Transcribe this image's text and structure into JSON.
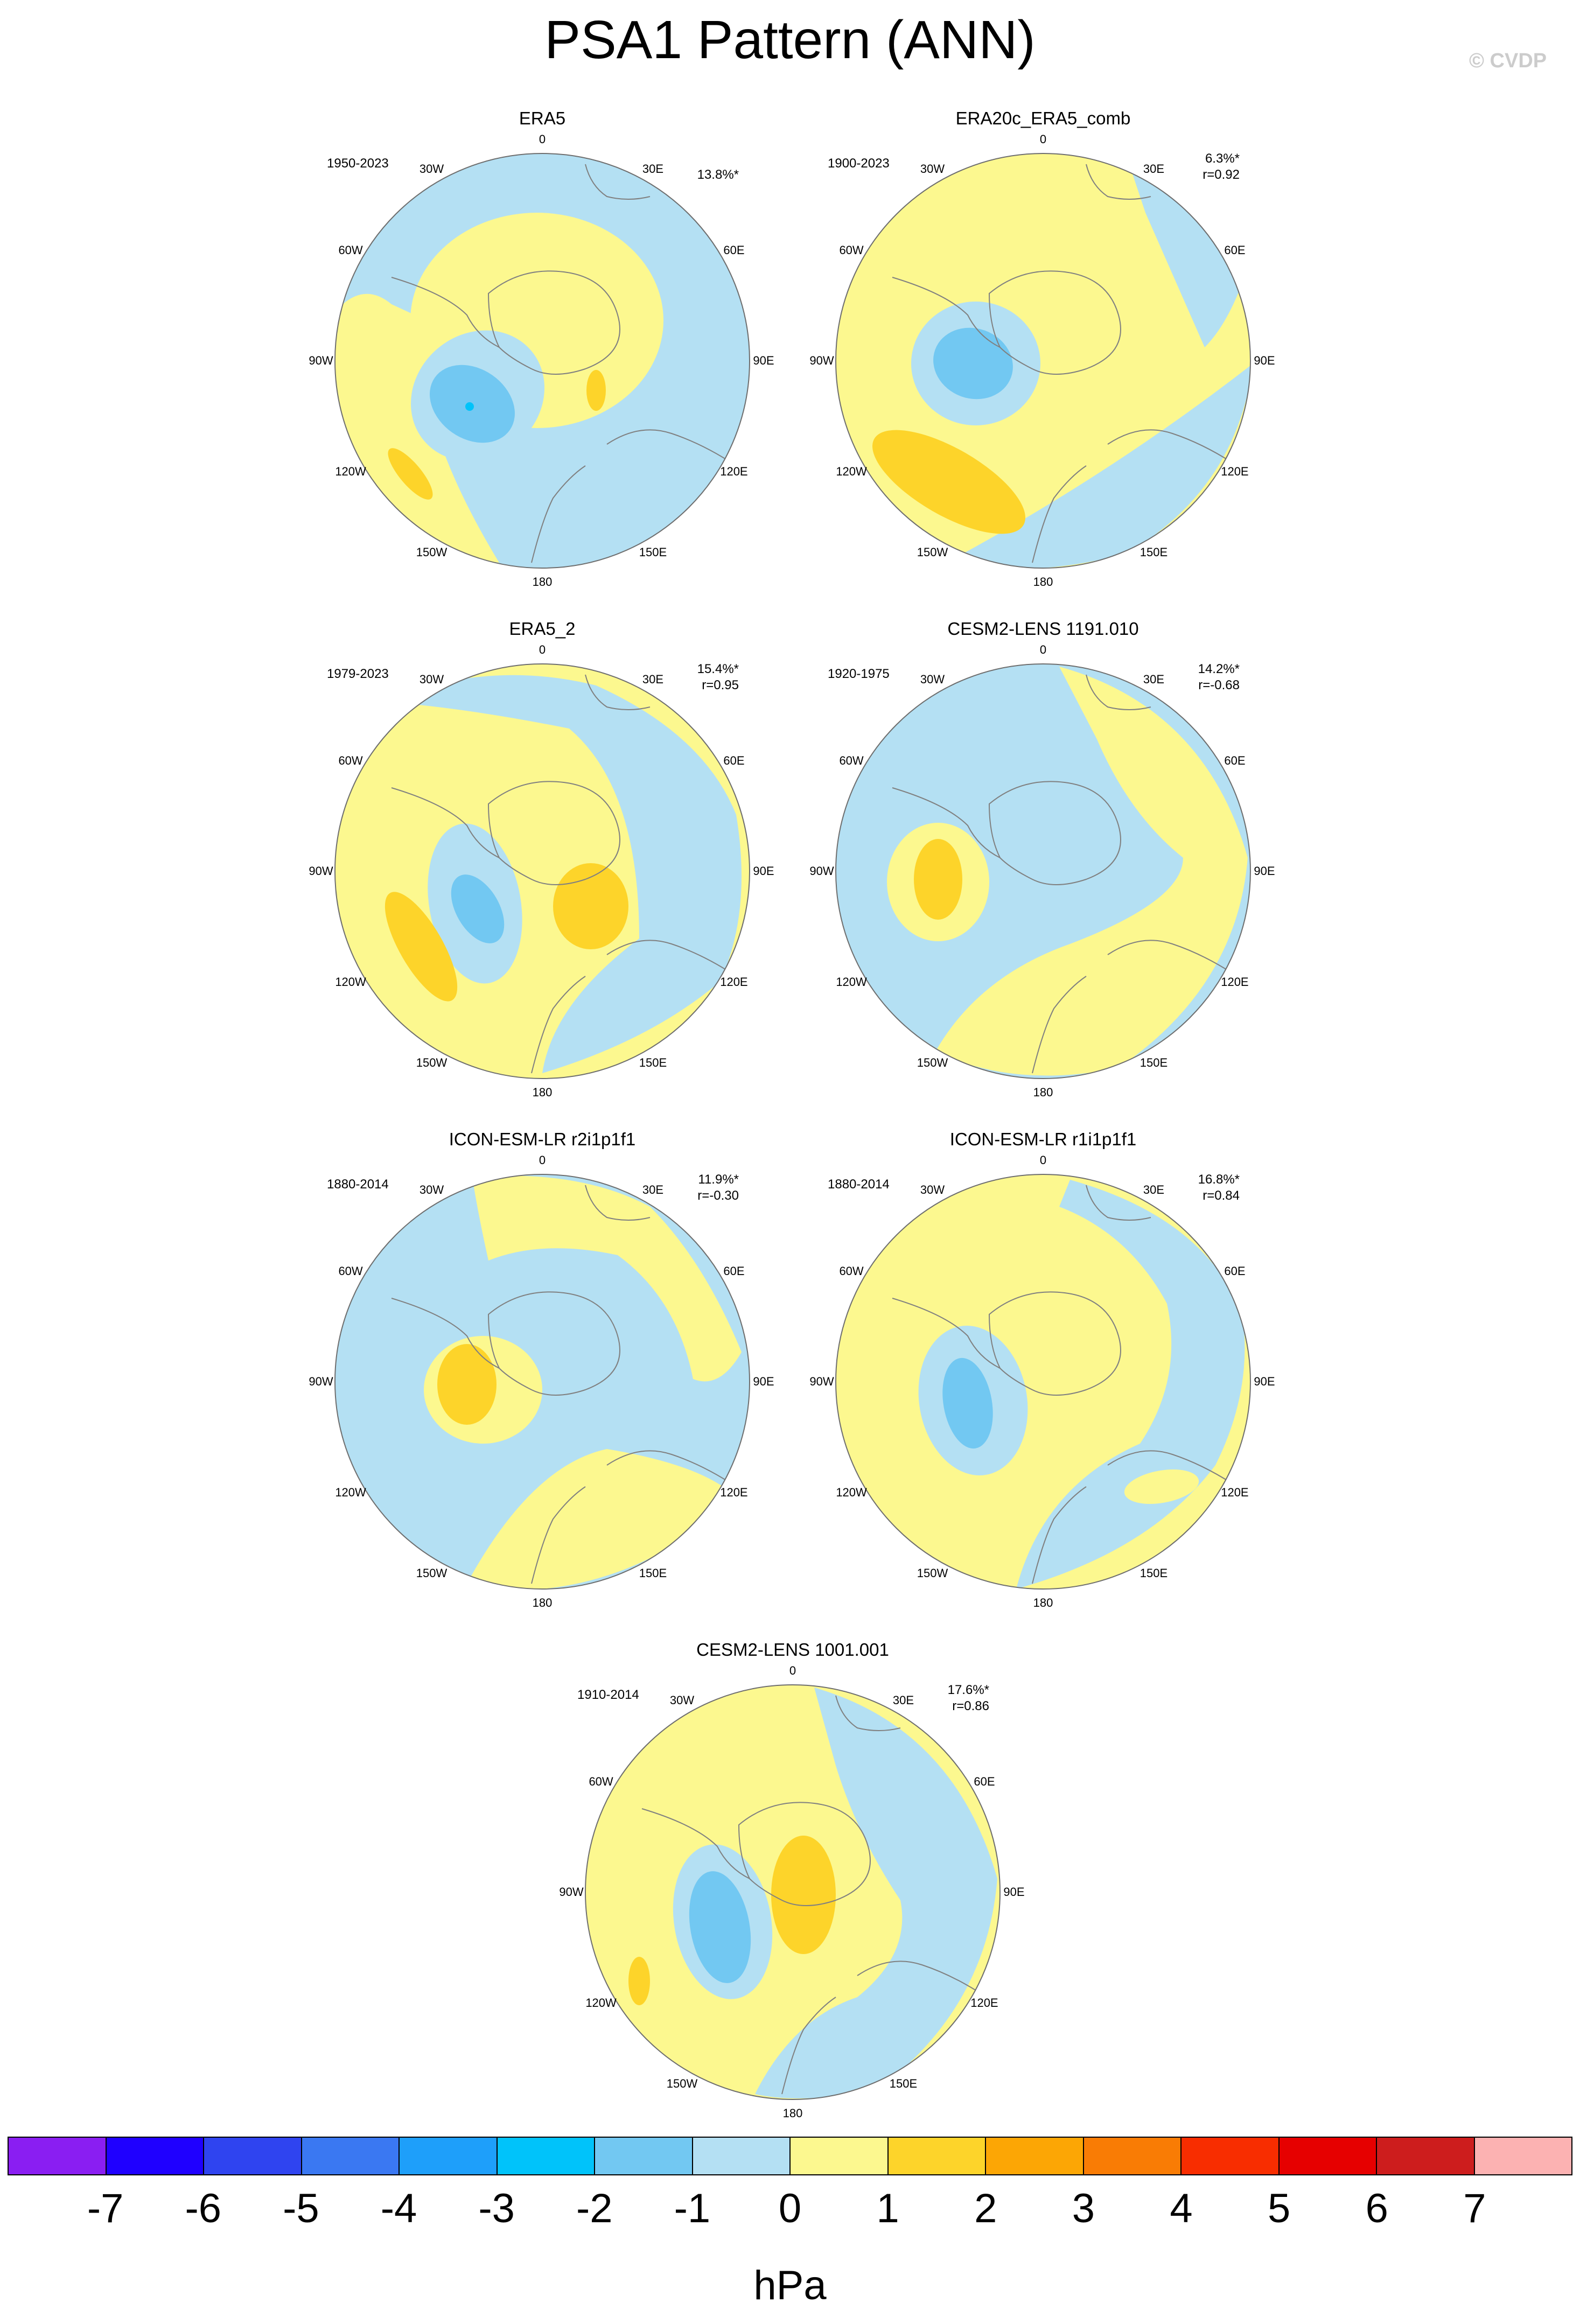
{
  "title": "PSA1 Pattern (ANN)",
  "credit": "© CVDP",
  "lon_labels": [
    "0",
    "30E",
    "60E",
    "90E",
    "120E",
    "150E",
    "180",
    "150W",
    "120W",
    "90W",
    "60W",
    "30W"
  ],
  "colors": {
    "land": "#808080",
    "frame": "#6e6e6e",
    "levels": [
      "#8a1ef2",
      "#1f00ff",
      "#2f44f0",
      "#3a78f2",
      "#1e9ffa",
      "#00c3fa",
      "#72c8f2",
      "#b4e0f3",
      "#fcf88f",
      "#fdd42a",
      "#fca605",
      "#f97c05",
      "#f82d00",
      "#e60000",
      "#cd1d1d",
      "#fcb2b2"
    ]
  },
  "panels": [
    {
      "title": "ERA5",
      "period": "1950-2023",
      "pct": "13.8%*",
      "r": ""
    },
    {
      "title": "ERA20c_ERA5_comb",
      "period": "1900-2023",
      "pct": "6.3%*",
      "r": "r=0.92"
    },
    {
      "title": "ERA5_2",
      "period": "1979-2023",
      "pct": "15.4%*",
      "r": "r=0.95"
    },
    {
      "title": "CESM2-LENS 1191.010",
      "period": "1920-1975",
      "pct": "14.2%*",
      "r": "r=-0.68"
    },
    {
      "title": "ICON-ESM-LR r2i1p1f1",
      "period": "1880-2014",
      "pct": "11.9%*",
      "r": "r=-0.30"
    },
    {
      "title": "ICON-ESM-LR r1i1p1f1",
      "period": "1880-2014",
      "pct": "16.8%*",
      "r": "r=0.84"
    },
    {
      "title": "CESM2-LENS 1001.001",
      "period": "1910-2014",
      "pct": "17.6%*",
      "r": "r=0.86"
    }
  ],
  "colorbar": {
    "ticks": [
      "-7",
      "-6",
      "-5",
      "-4",
      "-3",
      "-2",
      "-1",
      "0",
      "1",
      "2",
      "3",
      "4",
      "5",
      "6",
      "7"
    ],
    "units": "hPa"
  }
}
